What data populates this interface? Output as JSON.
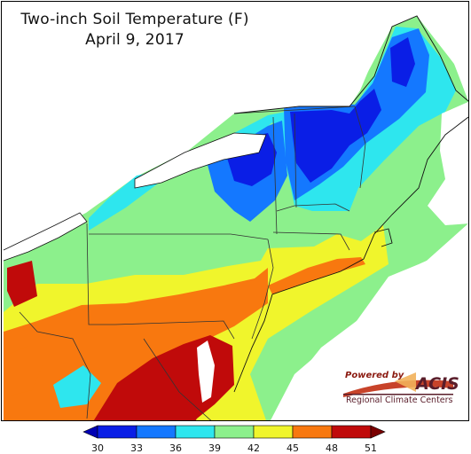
{
  "title": "Two-inch Soil Temperature (F)",
  "date": "April 9, 2017",
  "logo": {
    "powered_by": "Powered by",
    "brand": "ACIS",
    "org": "Regional Climate Centers"
  },
  "legend": {
    "ticks": [
      "30",
      "33",
      "36",
      "39",
      "42",
      "45",
      "48",
      "51"
    ],
    "colors": [
      "#0a1ee6",
      "#1478ff",
      "#2ee6ee",
      "#8cf08c",
      "#f0f52c",
      "#f8780f",
      "#c00a0a"
    ],
    "under_color": "#0000b4",
    "over_color": "#7a0000"
  },
  "palette": {
    "water": "#ffffff",
    "outside": "#ffffff",
    "border": "#333333"
  }
}
